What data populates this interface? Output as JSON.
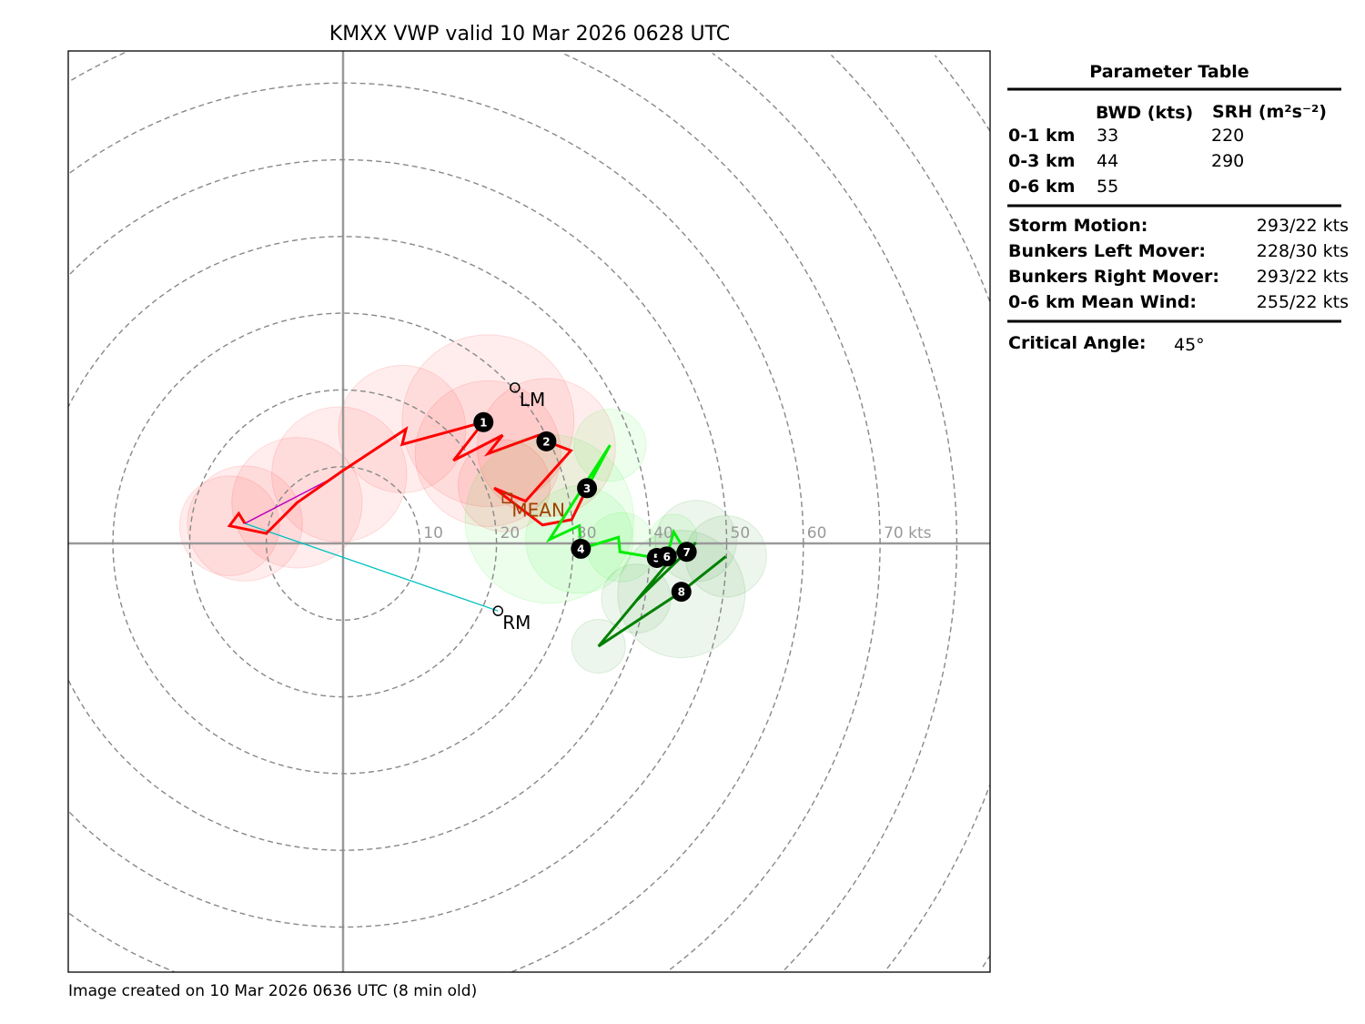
{
  "chart_data": {
    "type": "line",
    "title": "KMXX VWP valid 10 Mar 2026 0628 UTC",
    "footer": "Image created on 10 Mar 2026 0636 UTC (8 min old)",
    "xlim": [
      -35.8,
      84.3
    ],
    "ylim": [
      -55.5,
      64.6
    ],
    "grid": "dashed range rings every 10 kts",
    "ring_labels": [
      "10",
      "20",
      "30",
      "40",
      "50",
      "60",
      "70 kts"
    ],
    "ring_values": [
      10,
      20,
      30,
      40,
      50,
      60,
      70
    ],
    "series": [
      {
        "color": "#ff0000",
        "points": [
          [
            -12.8,
            2.6
          ],
          [
            -13.6,
            3.9
          ],
          [
            -14.8,
            2.3
          ],
          [
            -10.0,
            1.3
          ],
          [
            -6.0,
            5.3
          ],
          [
            0,
            9.5
          ],
          [
            8.2,
            14.9
          ],
          [
            7.7,
            12.9
          ],
          [
            18.3,
            15.8
          ],
          [
            14.4,
            10.8
          ],
          [
            20.8,
            14.1
          ],
          [
            18.9,
            11.7
          ],
          [
            25.5,
            14.1
          ],
          [
            26.5,
            13.3
          ],
          [
            29.7,
            12.1
          ],
          [
            23.8,
            5.5
          ],
          [
            19.7,
            7.2
          ],
          [
            26.0,
            2.4
          ],
          [
            29.8,
            3.1
          ],
          [
            31.8,
            7.2
          ]
        ]
      },
      {
        "color": "#00ee00",
        "points": [
          [
            31.8,
            7.2
          ],
          [
            34.8,
            12.8
          ],
          [
            26.9,
            0.5
          ],
          [
            30.8,
            2.3
          ],
          [
            31.0,
            -0.7
          ],
          [
            35.9,
            0.8
          ],
          [
            36.1,
            -1.1
          ],
          [
            40.9,
            -1.9
          ],
          [
            42.2,
            -1.7
          ],
          [
            43.1,
            1.5
          ],
          [
            44.0,
            0
          ],
          [
            44.8,
            -1.1
          ]
        ]
      },
      {
        "color": "#008000",
        "points": [
          [
            44.8,
            -1.1
          ],
          [
            46.0,
            0.1
          ],
          [
            38.2,
            -7.5
          ],
          [
            43.7,
            -0.9
          ],
          [
            33.3,
            -13.4
          ],
          [
            44.1,
            -6.3
          ],
          [
            49.9,
            -1.7
          ]
        ]
      }
    ],
    "uncertainty": [
      {
        "u": -14.8,
        "v": 2.3,
        "r": 6.5,
        "color": "#ff0000"
      },
      {
        "u": -12.8,
        "v": 2.6,
        "r": 7.5,
        "color": "#ff0000"
      },
      {
        "u": -6.0,
        "v": 5.3,
        "r": 8.5,
        "color": "#ff0000"
      },
      {
        "u": -0.5,
        "v": 9.0,
        "r": 8.8,
        "color": "#ff0000"
      },
      {
        "u": 7.7,
        "v": 14.9,
        "r": 8.3,
        "color": "#ff0000"
      },
      {
        "u": 18.9,
        "v": 16.0,
        "r": 11.2,
        "color": "#ff0000"
      },
      {
        "u": 18.9,
        "v": 11.7,
        "r": 9.5,
        "color": "#ff0000"
      },
      {
        "u": 26.5,
        "v": 12.5,
        "r": 9.0,
        "color": "#ff0000"
      },
      {
        "u": 21.0,
        "v": 7.5,
        "r": 6.0,
        "color": "#ff0000"
      },
      {
        "u": 34.8,
        "v": 12.8,
        "r": 4.7,
        "color": "#00ee00"
      },
      {
        "u": 26.9,
        "v": 3.2,
        "r": 11.0,
        "color": "#00ee00"
      },
      {
        "u": 30.8,
        "v": 0.5,
        "r": 7.0,
        "color": "#00ee00"
      },
      {
        "u": 36.3,
        "v": -0.5,
        "r": 4.5,
        "color": "#00ee00"
      },
      {
        "u": 43.1,
        "v": 0.8,
        "r": 3.0,
        "color": "#00ee00"
      },
      {
        "u": 46.0,
        "v": 0.3,
        "r": 5.3,
        "color": "#008000"
      },
      {
        "u": 49.9,
        "v": -1.7,
        "r": 5.3,
        "color": "#008000"
      },
      {
        "u": 44.1,
        "v": -6.6,
        "r": 8.3,
        "color": "#008000"
      },
      {
        "u": 38.2,
        "v": -7.2,
        "r": 4.5,
        "color": "#008000"
      },
      {
        "u": 33.3,
        "v": -13.4,
        "r": 3.5,
        "color": "#008000"
      }
    ],
    "level_markers": [
      {
        "label": "1",
        "u": 18.3,
        "v": 15.8
      },
      {
        "label": "2",
        "u": 26.5,
        "v": 13.3
      },
      {
        "label": "3",
        "u": 31.8,
        "v": 7.2
      },
      {
        "label": "4",
        "u": 31.0,
        "v": -0.7
      },
      {
        "label": "5",
        "u": 40.9,
        "v": -1.9
      },
      {
        "label": "6",
        "u": 42.2,
        "v": -1.7
      },
      {
        "label": "7",
        "u": 44.8,
        "v": -1.1
      },
      {
        "label": "8",
        "u": 44.1,
        "v": -6.3
      }
    ],
    "storm_markers": [
      {
        "label": "LM",
        "u": 22.4,
        "v": 20.3
      },
      {
        "label": "RM",
        "u": 20.2,
        "v": -8.8
      }
    ],
    "mean_wind": {
      "label": "MEAN",
      "u": 21.4,
      "v": 5.9,
      "color": "#a04000"
    },
    "storm_motion_line": {
      "color": "#00c0c0",
      "from": [
        -12.8,
        2.6
      ],
      "to": [
        20.2,
        -8.8
      ]
    },
    "shear_line": {
      "color": "#c000c0",
      "from": [
        -12.8,
        2.6
      ],
      "to": [
        -2.0,
        8.2
      ]
    }
  },
  "table": {
    "title": "Parameter Table",
    "col_bwd": "BWD (kts)",
    "col_srh": "SRH (m²s⁻²)",
    "rows": [
      {
        "label": "0-1 km",
        "bwd": "33",
        "srh": "220"
      },
      {
        "label": "0-3 km",
        "bwd": "44",
        "srh": "290"
      },
      {
        "label": "0-6 km",
        "bwd": "55",
        "srh": ""
      }
    ],
    "motions": [
      {
        "label": "Storm Motion:",
        "value": "293/22 kts"
      },
      {
        "label": "Bunkers Left Mover:",
        "value": "228/30 kts"
      },
      {
        "label": "Bunkers Right Mover:",
        "value": "293/22 kts"
      },
      {
        "label": "0-6 km Mean Wind:",
        "value": "255/22 kts"
      }
    ],
    "critical_angle_label": "Critical Angle:",
    "critical_angle_value": "45°"
  }
}
